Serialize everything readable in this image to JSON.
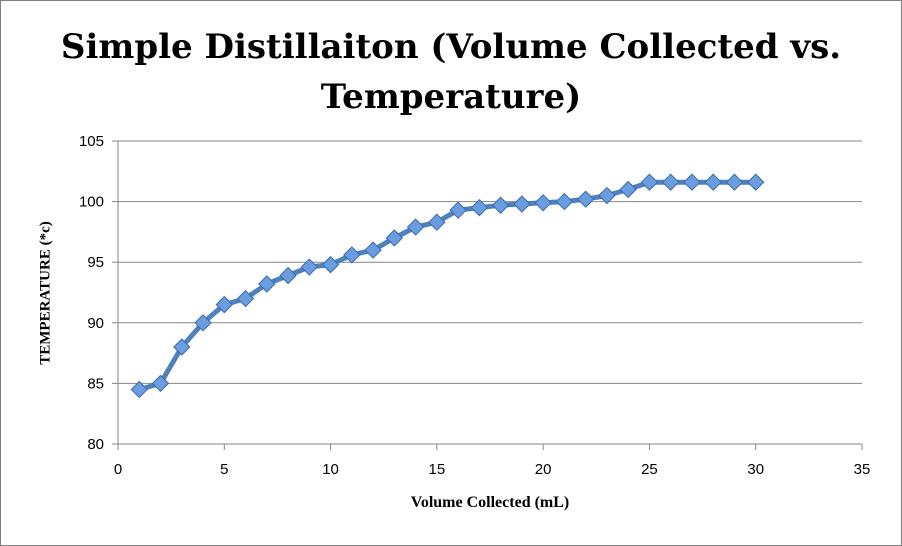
{
  "chart_data": {
    "type": "line",
    "title": "Simple Distillaiton (Volume Collected vs. Temperature)",
    "title_lines": [
      "Simple Distillaiton (Volume Collected vs.",
      "Temperature)"
    ],
    "xlabel": "Volume Collected (mL)",
    "ylabel": "TEMPERATURE (*c)",
    "xlim": [
      0,
      35
    ],
    "ylim": [
      80,
      105
    ],
    "xticks": [
      "0",
      "5",
      "10",
      "15",
      "20",
      "25",
      "30",
      "35"
    ],
    "yticks": [
      "80",
      "85",
      "90",
      "95",
      "100",
      "105"
    ],
    "grid": true,
    "legend": "none",
    "series": [
      {
        "color": "#4f81bd",
        "marker": "diamond",
        "x": [
          1,
          2,
          3,
          4,
          5,
          6,
          7,
          8,
          9,
          10,
          11,
          12,
          13,
          14,
          15,
          16,
          17,
          18,
          19,
          20,
          21,
          22,
          23,
          24,
          25,
          26,
          27,
          28,
          29,
          30
        ],
        "y": [
          84.5,
          85,
          88,
          90,
          91.5,
          92,
          93.2,
          93.9,
          94.6,
          94.8,
          95.6,
          96,
          97,
          97.9,
          98.3,
          99.3,
          99.5,
          99.7,
          99.8,
          99.9,
          100,
          100.2,
          100.5,
          101,
          101.6,
          101.6,
          101.6,
          101.6,
          101.6,
          101.6
        ]
      }
    ]
  }
}
